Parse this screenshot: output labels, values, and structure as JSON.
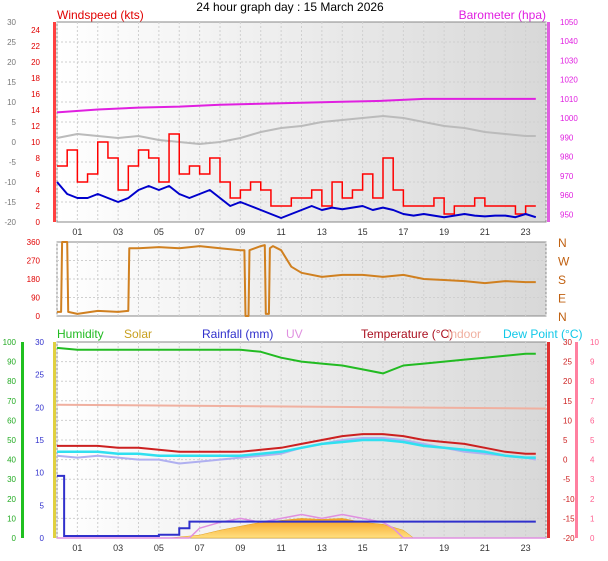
{
  "page_title": "24 hour graph day : 15 March 2026",
  "colors": {
    "wind": "#e00000",
    "gust_line": "#ff0000",
    "avg": "#0000cc",
    "baro": "#e020e0",
    "temp_top": "#bbbbbb",
    "dir": "#d08020",
    "humidity": "#22bb22",
    "solar": "#f5b830",
    "rain": "#3030cc",
    "uv": "#e090e0",
    "temp": "#cc2020",
    "indoor": "#f0b0a0",
    "dew": "#30e0f0",
    "dew_label": "#10c8e8",
    "axis_left2": "#20a020"
  },
  "chart_data": [
    {
      "type": "line",
      "title": "Windspeed (kts)",
      "title_right": "Barometer (hpa)",
      "x_ticks": [
        "01",
        "03",
        "05",
        "07",
        "09",
        "11",
        "13",
        "15",
        "17",
        "19",
        "21",
        "23"
      ],
      "xlim": [
        0,
        24
      ],
      "y_left_outer": {
        "ticks": [
          -20,
          -15,
          -10,
          -5,
          0,
          5,
          10,
          15,
          20,
          25,
          30
        ],
        "lim": [
          -20,
          30
        ]
      },
      "y_left_inner": {
        "ticks": [
          0,
          2,
          4,
          6,
          8,
          10,
          12,
          14,
          16,
          18,
          20,
          22,
          24
        ],
        "lim": [
          0,
          25
        ]
      },
      "y_right": {
        "ticks": [
          950,
          960,
          970,
          980,
          990,
          1000,
          1010,
          1020,
          1030,
          1040,
          1050
        ],
        "lim": [
          946,
          1050
        ]
      },
      "series": [
        {
          "key": "baro",
          "color": "#e020e0",
          "axis": "right",
          "x": [
            0,
            2,
            4,
            6,
            8,
            10,
            12,
            14,
            16,
            18,
            20,
            22,
            23.5
          ],
          "y": [
            1003,
            1004.5,
            1005.5,
            1006,
            1007,
            1007.5,
            1008,
            1008.5,
            1009,
            1010,
            1010,
            1010,
            1010
          ]
        },
        {
          "key": "temp",
          "color": "#bbbbbb",
          "axis": "left_outer",
          "x": [
            0,
            1,
            2,
            3,
            4,
            5,
            6,
            7,
            8,
            9,
            10,
            11,
            12,
            13,
            14,
            15,
            16,
            17,
            18,
            19,
            20,
            21,
            22,
            23,
            23.5
          ],
          "y": [
            1,
            2,
            1.5,
            1,
            1.5,
            0.5,
            0,
            -0.5,
            0,
            1,
            2.5,
            3.5,
            4,
            5,
            5.5,
            6,
            6.5,
            6,
            5,
            4,
            3.5,
            2.5,
            2,
            1.5,
            1.5
          ]
        },
        {
          "key": "gust",
          "color": "#ff0000",
          "axis": "left_inner",
          "x": [
            0,
            0.5,
            1,
            1.5,
            2,
            2.5,
            3,
            3.5,
            4,
            4.5,
            5,
            5.5,
            6,
            6.5,
            7,
            7.5,
            8,
            8.5,
            9,
            9.5,
            10,
            10.5,
            11,
            11.5,
            12,
            12.5,
            13,
            13.5,
            14,
            14.5,
            15,
            15.5,
            16,
            16.5,
            17,
            17.5,
            18,
            18.5,
            19,
            19.5,
            20,
            20.5,
            21,
            21.5,
            22,
            22.5,
            23,
            23.5
          ],
          "y": [
            7,
            9,
            5,
            6,
            10,
            8,
            4,
            7,
            9,
            8,
            5,
            11,
            6,
            7,
            6,
            8,
            5,
            3,
            4,
            5,
            4,
            2,
            2,
            3,
            3,
            4,
            2,
            5,
            3,
            4,
            6,
            3,
            8,
            4,
            2,
            2,
            2,
            3,
            1,
            2,
            2,
            3,
            2,
            2,
            2,
            1,
            2,
            2
          ]
        },
        {
          "key": "avg",
          "color": "#0000cc",
          "axis": "left_inner",
          "x": [
            0,
            0.5,
            1,
            1.5,
            2,
            2.5,
            3,
            3.5,
            4,
            4.5,
            5,
            5.5,
            6,
            6.5,
            7,
            7.5,
            8,
            8.5,
            9,
            9.5,
            10,
            10.5,
            11,
            11.5,
            12,
            12.5,
            13,
            13.5,
            14,
            14.5,
            15,
            15.5,
            16,
            16.5,
            17,
            17.5,
            18,
            18.5,
            19,
            19.5,
            20,
            20.5,
            21,
            21.5,
            22,
            22.5,
            23,
            23.5
          ],
          "y": [
            5,
            3.5,
            3,
            3,
            3.5,
            3,
            2.5,
            3,
            4,
            4.5,
            4,
            4.5,
            3.5,
            3,
            3.5,
            4,
            3,
            2,
            2.5,
            2,
            1.5,
            1,
            0.5,
            1,
            1.5,
            2,
            1.5,
            1.8,
            1.6,
            1.8,
            2,
            1.5,
            1.8,
            1.5,
            1,
            0.8,
            1,
            0.8,
            0.6,
            0.8,
            1,
            0.8,
            0.7,
            0.8,
            0.8,
            0.6,
            1,
            0.6
          ]
        }
      ]
    },
    {
      "type": "line",
      "title": "Wind direction",
      "y_left": {
        "ticks": [
          0,
          90,
          180,
          270,
          360
        ],
        "lim": [
          0,
          360
        ]
      },
      "y_right_labels": [
        "N",
        "W",
        "S",
        "E",
        "N"
      ],
      "xlim": [
        0,
        24
      ],
      "series": [
        {
          "key": "dir",
          "color": "#d08020",
          "x": [
            0,
            0.2,
            0.25,
            0.5,
            0.55,
            1,
            2,
            3,
            3.5,
            3.55,
            4,
            5,
            6,
            7,
            8,
            9,
            9.2,
            9.25,
            9.4,
            9.45,
            10,
            10.2,
            10.25,
            10.4,
            10.45,
            10.6,
            10.8,
            11,
            11.5,
            12,
            13,
            14,
            15,
            16,
            17,
            18,
            19,
            20,
            21,
            22,
            23,
            23.5
          ],
          "y": [
            20,
            20,
            360,
            360,
            20,
            10,
            25,
            20,
            25,
            330,
            330,
            335,
            330,
            340,
            330,
            320,
            320,
            0,
            0,
            320,
            340,
            345,
            10,
            10,
            330,
            340,
            330,
            320,
            240,
            210,
            190,
            200,
            200,
            190,
            200,
            180,
            175,
            170,
            160,
            170,
            165,
            165
          ]
        }
      ]
    },
    {
      "type": "line",
      "legend": [
        "Humidity",
        "Solar",
        "Rainfall (mm)",
        "UV",
        "Temperature (°C)",
        "Indoor",
        "Dew Point (°C)"
      ],
      "x_ticks": [
        "01",
        "03",
        "05",
        "07",
        "09",
        "11",
        "13",
        "15",
        "17",
        "19",
        "21",
        "23"
      ],
      "xlim": [
        0,
        24
      ],
      "y_left_outer": {
        "ticks": [
          0,
          10,
          20,
          30,
          40,
          50,
          60,
          70,
          80,
          90,
          100
        ],
        "lim": [
          0,
          100
        ]
      },
      "y_left_inner": {
        "ticks": [
          0,
          5,
          10,
          15,
          20,
          25,
          30
        ],
        "lim": [
          0,
          30
        ]
      },
      "y_right_outer": {
        "ticks": [
          -20,
          -15,
          -10,
          -5,
          0,
          5,
          10,
          15,
          20,
          25,
          30
        ],
        "lim": [
          -20,
          30
        ]
      },
      "y_right_inner": {
        "ticks": [
          0,
          1,
          2,
          3,
          4,
          5,
          6,
          7,
          8,
          9,
          10
        ],
        "lim": [
          0,
          10
        ]
      },
      "series": [
        {
          "key": "humidity",
          "color": "#22bb22",
          "axis": "left_outer",
          "x": [
            0,
            1,
            2,
            3,
            4,
            5,
            6,
            7,
            8,
            9,
            10,
            11,
            12,
            13,
            14,
            15,
            16,
            17,
            18,
            19,
            20,
            21,
            22,
            23,
            23.5
          ],
          "y": [
            97,
            96,
            96,
            96,
            96,
            96,
            96,
            96,
            96,
            96,
            95,
            92,
            90,
            89,
            88,
            86,
            84,
            88,
            89,
            90,
            91,
            92,
            93,
            94,
            94
          ]
        },
        {
          "key": "solar",
          "color": "#f5b830",
          "axis": "left_outer",
          "x": [
            0,
            5.5,
            6,
            7,
            8,
            9,
            10,
            11,
            12,
            13,
            14,
            15,
            16,
            17,
            17.5,
            24
          ],
          "y": [
            0,
            0,
            0.5,
            1.5,
            4,
            6,
            8,
            9,
            10,
            9.5,
            10,
            8,
            7,
            4,
            0,
            0
          ]
        },
        {
          "key": "rain",
          "color": "#3030cc",
          "axis": "left_inner",
          "x": [
            0,
            0.3,
            0.35,
            5,
            6,
            6.5,
            23.5
          ],
          "y": [
            9.5,
            9.5,
            0.3,
            0.5,
            1.5,
            2.5,
            2.5
          ]
        },
        {
          "key": "indoor",
          "color": "#f0b0a0",
          "axis": "right_outer",
          "x": [
            0,
            24
          ],
          "y": [
            14,
            13
          ]
        },
        {
          "key": "temperature",
          "color": "#cc2020",
          "axis": "right_outer",
          "x": [
            0,
            1,
            2,
            3,
            4,
            5,
            6,
            7,
            8,
            9,
            10,
            11,
            12,
            13,
            14,
            15,
            16,
            17,
            18,
            19,
            20,
            21,
            22,
            23,
            23.5
          ],
          "y": [
            3.5,
            3.5,
            3.5,
            3,
            3,
            2.5,
            2,
            2,
            2,
            2,
            2.5,
            3,
            4,
            5,
            6,
            6.5,
            6.5,
            6,
            5,
            4.5,
            4,
            3,
            2,
            1.5,
            1.5
          ]
        },
        {
          "key": "dew",
          "color": "#30e0f0",
          "axis": "right_outer",
          "x": [
            0,
            1,
            2,
            3,
            4,
            5,
            6,
            7,
            8,
            9,
            10,
            11,
            12,
            13,
            14,
            15,
            16,
            17,
            18,
            19,
            20,
            21,
            22,
            23,
            23.5
          ],
          "y": [
            2,
            2,
            2,
            1.5,
            1.5,
            1,
            1,
            1,
            1,
            1,
            1.5,
            2,
            3,
            4,
            4.5,
            5,
            5,
            4.5,
            3.5,
            3,
            2.5,
            2,
            1,
            0.5,
            0.5
          ]
        },
        {
          "key": "temp2",
          "color": "#b0b0f0",
          "axis": "right_outer",
          "x": [
            0,
            1,
            2,
            3,
            4,
            5,
            6,
            7,
            8,
            9,
            10,
            11,
            12,
            13,
            14,
            15,
            16,
            17,
            18,
            19,
            20,
            21,
            22,
            23,
            23.5
          ],
          "y": [
            1,
            0.5,
            1,
            0.5,
            0,
            0,
            -1,
            -0.5,
            0,
            0.5,
            1,
            1.5,
            3,
            4,
            5,
            5.5,
            5.5,
            5,
            4,
            3,
            2,
            1.5,
            1,
            0.5,
            0
          ]
        },
        {
          "key": "uv",
          "color": "#e090e0",
          "axis": "right_inner",
          "x": [
            0,
            6,
            6.5,
            7,
            8,
            9,
            10,
            11,
            12,
            13,
            14,
            15,
            16,
            16.5,
            17,
            18,
            24
          ],
          "y": [
            0,
            0,
            0,
            0.5,
            0.8,
            1,
            0.8,
            1,
            1.2,
            1,
            1.2,
            1,
            0.8,
            0.5,
            0,
            0,
            0
          ]
        }
      ]
    }
  ]
}
